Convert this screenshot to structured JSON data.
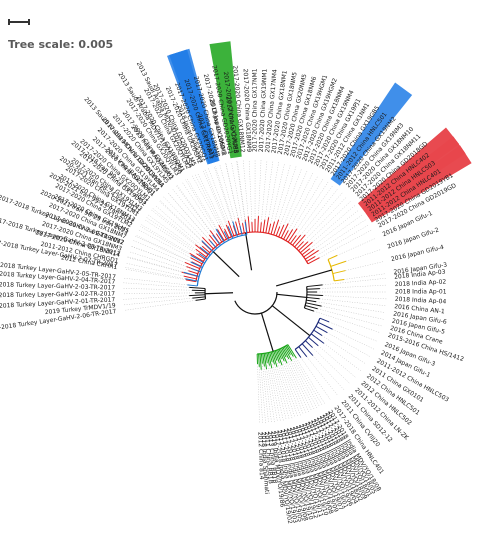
{
  "scale": {
    "label": "Tree scale: 0.005"
  },
  "colors": {
    "red": "#e8474c",
    "blue": "#1e7be6",
    "green": "#1aa519",
    "gold": "#e6b800",
    "orange": "#d2722b",
    "cyan": "#1e78d2",
    "navy": "#1c2a7a",
    "black": "#111111",
    "grey": "#9a9a9a"
  },
  "clades": [
    {
      "id": "red",
      "color": "#e02020",
      "leaves": [
        "2012 China CKHR1",
        "2011-2012 China CHRGD1",
        "2017-2020 China GX18NM14",
        "2017-2020 China GX18NM3",
        "2017-2020 China GX19NM2",
        "2017-2020 China GX18NM7",
        "2017-2020 China GX19LM5",
        "2017-2020 China GX19YLM2",
        "2017-2020 China GX18NM13",
        "2017-2020 China GX19YLM1",
        "2017-2020 China GX19YLM3",
        "2017-2020 China GX19DQ2",
        "2017-2020 China GX20QYLM1",
        "2017-2020 China GX19DQ1",
        "2017-2020 China GX19YLM4",
        "2017-2020 China GX20QYLM4",
        "2017-2020 China GX19YLM5",
        "2017-2020 China GX20GH1",
        "2017-2020 China GX20QYLM3",
        "2017-2020 China GX19DQM1",
        "2017-2020 China GX20QYLM2",
        "2017-2020 China GX20QYLM5",
        "2017-2020 China GX20GH2",
        "2017-2020 China GX20GQ1",
        "2017-2020 China GX17NM1",
        "2017-2020 China GX18NM8",
        "2017-2020 China GX20NM2",
        "2017-2020 China GD2020YG1",
        "2017-2020 China GX19LM3",
        "2017-2020 China GX18NM12",
        "2017-2020 China GX18NM9",
        "2017-2020 China GX17NM1",
        "2017-2020 China GX19NM1",
        "2017-2020 China GX17NM4",
        "2017-2020 China GX18NM1",
        "2017-2020 China GX18NM5",
        "2017-2020 China GX20NM5",
        "2017-2020 China GX18NM6",
        "2017-2020 China GX19HGM1",
        "2017-2020 China GX19HGM2",
        "2017-2020 China GX18NM4",
        "2017-2020 China GX19NM4",
        "2017-2020 China GX19PJ1",
        "2011-2012 China GX1NM1",
        "2017-2020 China GX19GB5",
        "2011-2012 China HNLC501",
        "2017-2020 China GX19NM2",
        "2017-2020 China GX19NM3",
        "2017-2020 China GX18NM10",
        "2017-2020 China GX18NM11",
        "2017-2020 China GD2018GD",
        "2011-2012 China HNLC402",
        "2011-2012 China HNLC503",
        "2011-2012 China HNLC401",
        "2017-2020 China GD2019YB1",
        "2017-2020 China GD2019GD"
      ]
    },
    {
      "id": "black",
      "color": "#111111",
      "leaves": [
        "2017-2018 Turkey Layer-GaHV-2-06-TR-2017",
        "2019 Turkey TrMDV1/19",
        "2017-2018 Turkey Layer-GaHV-2-01-TR-2017",
        "2017-2018 Turkey Layer-GaHV-2-02-TR-2017",
        "2017-2018 Turkey Layer-GaHV-2-03-TR-2017",
        "2017-2018 Turkey Layer-GaHV-2-04-TR-2017"
      ]
    },
    {
      "id": "blue",
      "color": "#1e78d2",
      "leaves": [
        "2017-2018 Turkey Layer-GaHV-2-05-TR-2017",
        "2017-2018 Turkey Layer-GaHV-2-07-TR-2017",
        "2017-2018 Turkey Layer-GaHV-2-08-TR-2017",
        "2017-2018 Turkey Layer-GaHV-2-09-TR-2017",
        "2020-2021 Iran 98-25 Iran 2021",
        "2020-2021 Iran 99-25 Iran 2021",
        "2020-2021 Iran 98-24 Iran 2021",
        "2017-2018 Iran 99-23 Iran 2021",
        "2013 Iraq IRAQ/MD/01",
        "2013 Saudi Arabia MDV/1/10/2013/KSA",
        "2013 Iraq IRAQ/MD/02",
        "2013 Saudi Arabia MDV/1/10/2013/KSA",
        "2013 Saudi Arabia MDV/4/10/2013/KSA",
        "2018 Japan Ishikawa",
        "2013 China LTS",
        "2018 Japan 1060-R",
        "2012 China CVI988"
      ]
    },
    {
      "id": "green",
      "color": "#1aa519",
      "leaves": [
        "2012 China 814",
        "2018 India Shahmati",
        "2011 China RB1B",
        "2013 China RB1B",
        "2019 India MDV/YO/19/86",
        "2017-2018 India MDV/YO/19/02",
        "2017-2018 India MDV/YO/19/03",
        "2017-2018 India MDV/YO/19/05",
        "2017-2018 India MDV/YO/19/08",
        "2017-2018 India MDV/YO/19/10",
        "2017-2018 India MDV/YO/19/12",
        "2017-2018 India MDV/YO/19/11",
        "2017-2018 India MDV/YO/19/10",
        "2017-2018 India MDV/YO/19/08",
        "2017-2018 India MDV/YO/19/09",
        "2017-2018 India MDV/YO/19/07",
        "2017-2018 India MDV/YO/19/01",
        "2017-2018 India MDV/YO/19/06",
        "2017-2018 India MDV/YO/19/04",
        "2017-2018 India MDV/YO/18/02",
        "2017-2018 India MDV/YO/18/09",
        "2017-2018 India MDV/YO/18/01",
        "2017-2018 India MDV/YO/18/05",
        "2017-2018 India MDV/YO/18/08"
      ]
    },
    {
      "id": "navy",
      "color": "#1c2a7a",
      "leaves": [
        "2017-2018 China HNLC401",
        "2011 China CVIIJ20",
        "2011 China SD12-12",
        "2011-2012 China LN-ZK",
        "2012 China HNLC502",
        "2012 China HNLC501",
        "2011 China GX0101",
        "2011-2012 China HNLC503",
        "2014 Japan Gifu-1",
        "2016 Japan Gifu-3"
      ]
    },
    {
      "id": "black2",
      "color": "#111111",
      "leaves": [
        "2015-2016 China HS/1412",
        "2016 China Crane",
        "2016 Japan Gifu-5",
        "2016 Japan Gifu-6",
        "2016 China AN-1",
        "2018 India Ap-04",
        "2018 India Ap-01",
        "2018 India Ap-02",
        "2018 India Ap-03"
      ]
    },
    {
      "id": "gold",
      "color": "#e6b800",
      "leaves": [
        "2016 Japan Gifu-3",
        "2016 Japan Gifu-4",
        "2016 Japan Gifu-2",
        "2016 Japan Gifu-1"
      ]
    }
  ],
  "highlights": [
    {
      "label": "2011-2012 China HNLC401",
      "color": "#e8474c"
    },
    {
      "label": "2011-2012 China HNLC503",
      "color": "#e8474c"
    },
    {
      "label": "2011-2012 China HNLC402",
      "color": "#e8474c"
    },
    {
      "label": "2017-2020 China GX17NM1",
      "color": "#1e7be6"
    },
    {
      "label": "2011-2012 China HNLC503",
      "color": "#e8474c"
    },
    {
      "label": "2011-2012 China HNLC501",
      "color": "#1e7be6"
    },
    {
      "label": "2011-2012 China HNLC502",
      "color": "#1e7be6"
    },
    {
      "label": "2011-2012 China HNLC401",
      "color": "#e8474c"
    },
    {
      "label": "2011-2012 China HNLC402",
      "color": "#e8474c"
    },
    {
      "label": "2013 China LTS",
      "color": "#1e7be6"
    },
    {
      "label": "2012 China CVI988",
      "color": "#1aa519"
    },
    {
      "label": "2011 China 814",
      "color": "#e8474c"
    }
  ]
}
